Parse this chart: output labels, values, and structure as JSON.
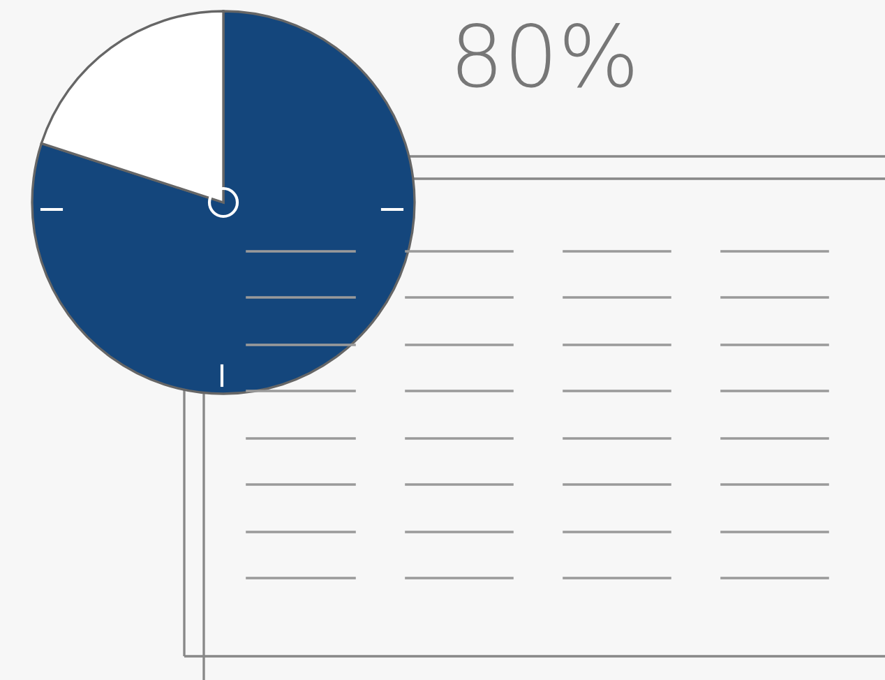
{
  "chart_data": {
    "type": "pie",
    "categories": [
      null,
      null
    ],
    "values": [
      80,
      20
    ],
    "colors": [
      "#14467c",
      "#ffffff"
    ],
    "value_labels": [
      "80%",
      null
    ]
  }
}
